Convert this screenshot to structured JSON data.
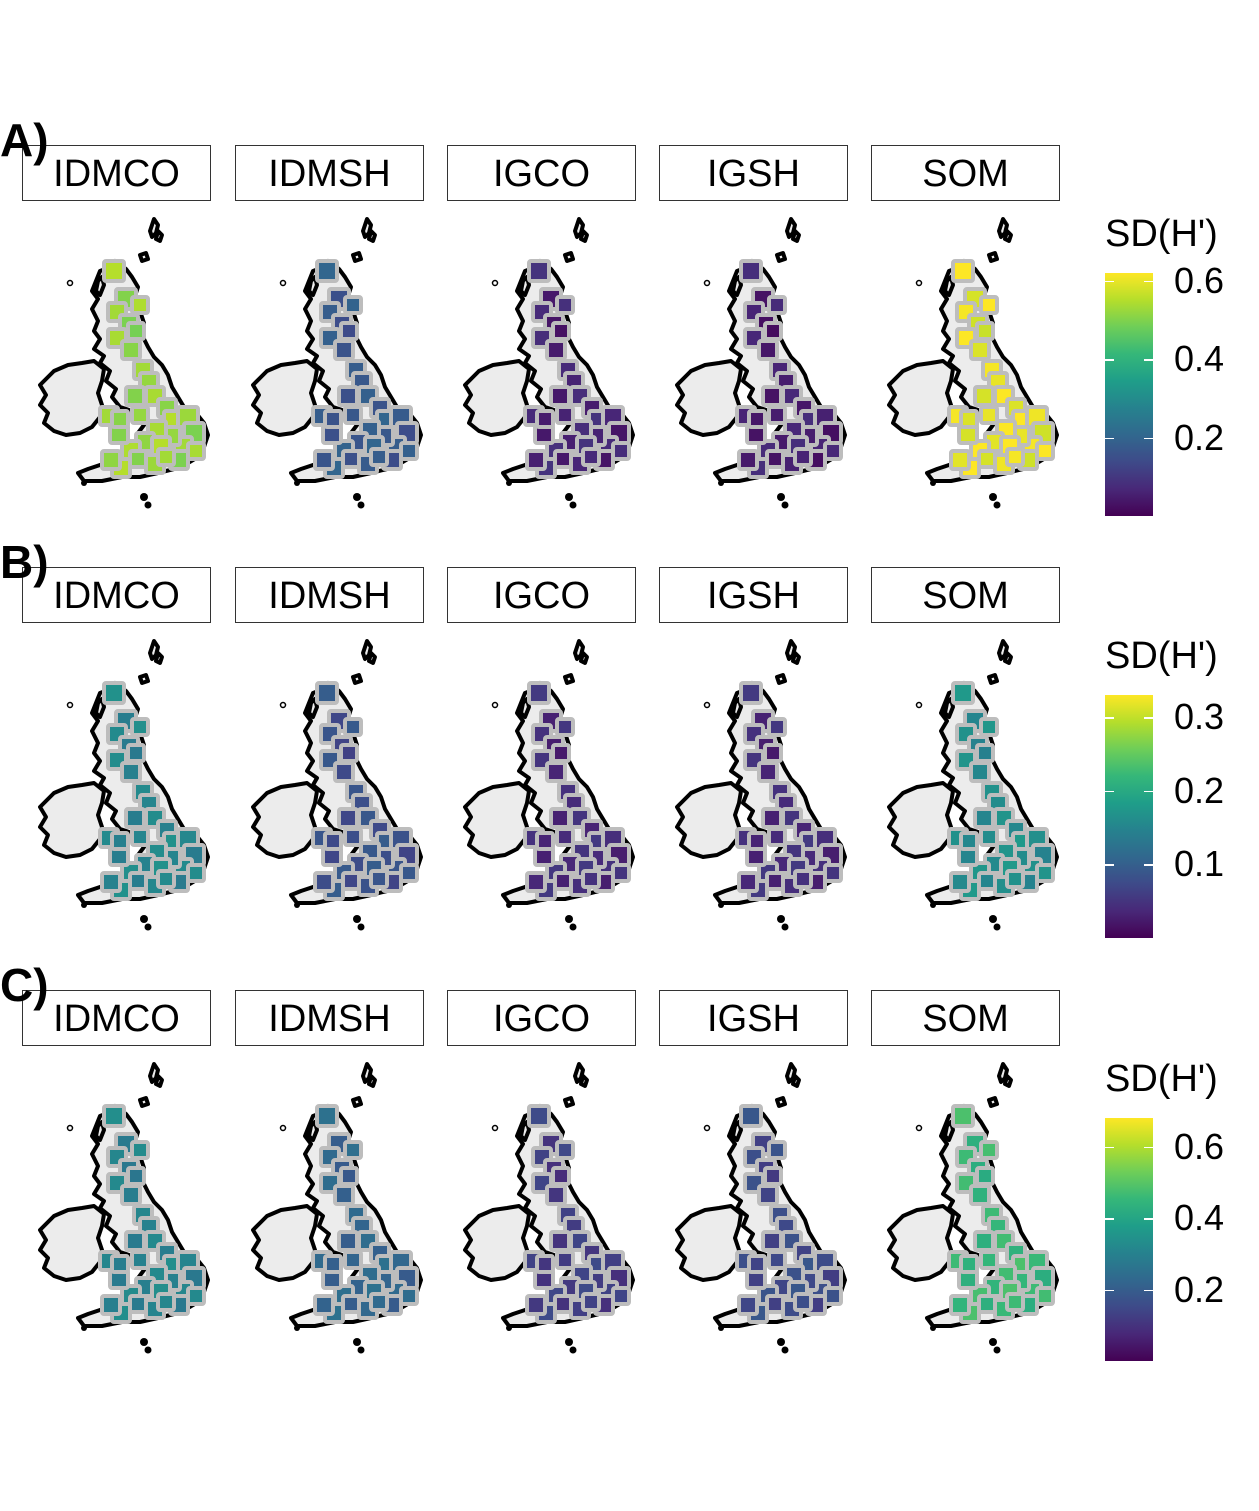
{
  "figure": {
    "panels_order": [
      "IDMCO",
      "IDMSH",
      "IGCO",
      "IGSH",
      "SOM"
    ],
    "legend_title": "SD(H')",
    "colormap": "viridis",
    "land_color": "#ececec",
    "coast_color": "#000000",
    "cell_border_color": "#bdbdbd",
    "rows": [
      {
        "label": "A)",
        "panels": [
          "IDMCO",
          "IDMSH",
          "IGCO",
          "IGSH",
          "SOM"
        ],
        "legend": {
          "title": "SD(H')",
          "min": 0.0,
          "max": 0.62,
          "ticks": [
            0.2,
            0.4,
            0.6
          ],
          "tick_labels": [
            "0.2",
            "0.4",
            "0.6"
          ]
        },
        "values": {
          "IDMCO": 0.52,
          "IDMSH": 0.17,
          "IGCO": 0.06,
          "IGSH": 0.05,
          "SOM": 0.6
        }
      },
      {
        "label": "B)",
        "panels": [
          "IDMCO",
          "IDMSH",
          "IGCO",
          "IGSH",
          "SOM"
        ],
        "legend": {
          "title": "SD(H')",
          "min": 0.0,
          "max": 0.33,
          "ticks": [
            0.1,
            0.2,
            0.3
          ],
          "tick_labels": [
            "0.1",
            "0.2",
            "0.3"
          ]
        },
        "values": {
          "IDMCO": 0.15,
          "IDMSH": 0.08,
          "IGCO": 0.04,
          "IGSH": 0.04,
          "SOM": 0.16
        }
      },
      {
        "label": "C)",
        "panels": [
          "IDMCO",
          "IDMSH",
          "IGCO",
          "IGSH",
          "SOM"
        ],
        "legend": {
          "title": "SD(H')",
          "min": 0.0,
          "max": 0.68,
          "ticks": [
            0.2,
            0.4,
            0.6
          ],
          "tick_labels": [
            "0.2",
            "0.4",
            "0.6"
          ]
        },
        "values": {
          "IDMCO": 0.3,
          "IDMSH": 0.22,
          "IGCO": 0.12,
          "IGSH": 0.15,
          "SOM": 0.45
        }
      }
    ]
  }
}
